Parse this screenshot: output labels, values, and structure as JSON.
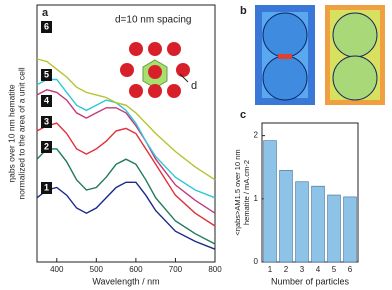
{
  "chart_data": [
    {
      "type": "line",
      "panel": "a",
      "annotation": "d=10 nm spacing",
      "inset_label": "d",
      "xlabel": "Wavelength / nm",
      "ylabel": [
        "ηabs over 10 nm hematite",
        "normalized to the area of a unit cell"
      ],
      "x": [
        350,
        375,
        400,
        425,
        450,
        475,
        500,
        525,
        550,
        575,
        600,
        625,
        650,
        700,
        750,
        800
      ],
      "xlim": [
        350,
        800
      ],
      "xticks": [
        400,
        500,
        600,
        700,
        800
      ],
      "ylim": [
        0,
        1
      ],
      "series": [
        {
          "name": "1",
          "color": "#1b2a8a",
          "values": [
            0.25,
            0.28,
            0.29,
            0.26,
            0.21,
            0.19,
            0.21,
            0.25,
            0.29,
            0.31,
            0.31,
            0.26,
            0.2,
            0.12,
            0.08,
            0.05
          ]
        },
        {
          "name": "2",
          "color": "#1e7a5a",
          "values": [
            0.4,
            0.44,
            0.44,
            0.39,
            0.32,
            0.28,
            0.29,
            0.33,
            0.38,
            0.4,
            0.38,
            0.32,
            0.25,
            0.16,
            0.11,
            0.07
          ]
        },
        {
          "name": "3",
          "color": "#e0303a",
          "values": [
            0.51,
            0.53,
            0.54,
            0.5,
            0.44,
            0.42,
            0.44,
            0.47,
            0.51,
            0.52,
            0.5,
            0.44,
            0.38,
            0.26,
            0.19,
            0.14
          ]
        },
        {
          "name": "4",
          "color": "#c23a7a",
          "values": [
            0.65,
            0.67,
            0.66,
            0.63,
            0.58,
            0.56,
            0.58,
            0.6,
            0.6,
            0.58,
            0.53,
            0.47,
            0.4,
            0.3,
            0.24,
            0.19
          ]
        },
        {
          "name": "5",
          "color": "#2ec8d8",
          "values": [
            0.69,
            0.71,
            0.71,
            0.66,
            0.61,
            0.59,
            0.61,
            0.63,
            0.62,
            0.59,
            0.54,
            0.47,
            0.41,
            0.33,
            0.28,
            0.25
          ]
        },
        {
          "name": "6",
          "color": "#b8c230",
          "values": [
            0.79,
            0.78,
            0.75,
            0.72,
            0.68,
            0.66,
            0.65,
            0.64,
            0.62,
            0.61,
            0.58,
            0.54,
            0.5,
            0.43,
            0.37,
            0.32
          ]
        }
      ]
    },
    {
      "type": "image",
      "panel": "b"
    },
    {
      "type": "bar",
      "panel": "c",
      "xlabel": "Number of particles",
      "ylabel": [
        "<ηabs>AM1.5 over 10 nm",
        "hematite / mA.cm-2"
      ],
      "categories": [
        "1",
        "2",
        "3",
        "4",
        "5",
        "6"
      ],
      "values": [
        1.92,
        1.45,
        1.27,
        1.2,
        1.06,
        1.03
      ],
      "color": "#8ec3e8",
      "ylim": [
        0,
        2.2
      ],
      "yticks": [
        0,
        1,
        2
      ]
    }
  ]
}
